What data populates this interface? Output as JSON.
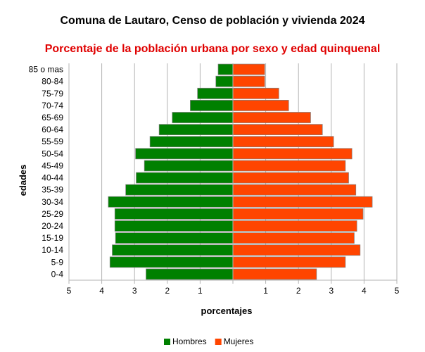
{
  "chart_data": {
    "type": "bar",
    "orientation": "horizontal",
    "title": "Comuna de Lautaro, Censo de población y vivienda 2024",
    "subtitle": "Porcentaje de la población urbana por sexo y edad quinquenal",
    "subtitle_color": "#e00000",
    "xlabel": "porcentajes",
    "ylabel": "edades",
    "xlim": [
      -5,
      5
    ],
    "xtick_values": [
      -5,
      -4,
      -3,
      -2,
      -1,
      0,
      1,
      2,
      3,
      4,
      5
    ],
    "xtick_labels": [
      "5",
      "4",
      "3",
      "2",
      "1",
      "",
      "1",
      "2",
      "3",
      "4",
      "5"
    ],
    "grid": true,
    "legend_position": "bottom",
    "categories": [
      "0-4",
      "5-9",
      "10-14",
      "15-19",
      "20-24",
      "25-29",
      "30-34",
      "35-39",
      "40-44",
      "45-49",
      "50-54",
      "55-59",
      "60-64",
      "65-69",
      "70-74",
      "75-79",
      "80-84",
      "85 o mas"
    ],
    "series": [
      {
        "name": "Hombres",
        "color": "#008000",
        "values": [
          2.65,
          3.75,
          3.68,
          3.58,
          3.6,
          3.6,
          3.8,
          3.27,
          2.95,
          2.7,
          2.97,
          2.53,
          2.25,
          1.85,
          1.3,
          1.08,
          0.52,
          0.45
        ]
      },
      {
        "name": "Mujeres",
        "color": "#ff4500",
        "values": [
          2.55,
          3.43,
          3.88,
          3.7,
          3.78,
          3.97,
          4.25,
          3.75,
          3.53,
          3.43,
          3.63,
          3.07,
          2.73,
          2.37,
          1.7,
          1.4,
          0.97,
          0.97
        ]
      }
    ]
  }
}
